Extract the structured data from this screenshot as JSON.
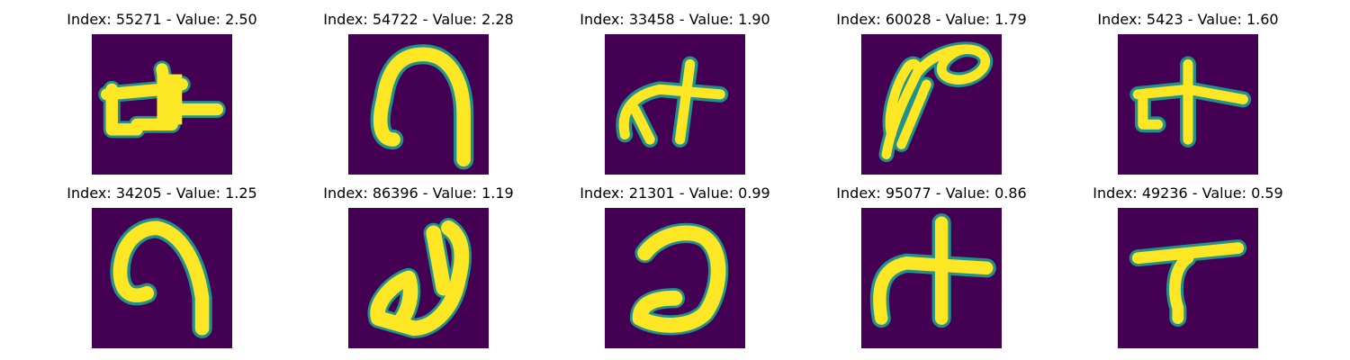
{
  "colors": {
    "background": "#440154",
    "foreground": "#fde725",
    "edge": "#21918c"
  },
  "panels": [
    {
      "title": "Index: 55271 - Value: 2.50",
      "image": "handwritten-glyph-pi-with-cross"
    },
    {
      "title": "Index: 54722 - Value: 2.28",
      "image": "handwritten-glyph-arch"
    },
    {
      "title": "Index: 33458 - Value: 1.90",
      "image": "handwritten-glyph-cross-with-hook"
    },
    {
      "title": "Index: 60028 - Value: 1.79",
      "image": "handwritten-glyph-loops"
    },
    {
      "title": "Index: 5423 - Value: 1.60",
      "image": "handwritten-glyph-cross-with-hook"
    },
    {
      "title": "Index: 34205 - Value: 1.25",
      "image": "handwritten-glyph-arch"
    },
    {
      "title": "Index: 86396 - Value: 1.19",
      "image": "handwritten-glyph-hooked-stroke"
    },
    {
      "title": "Index: 21301 - Value: 0.99",
      "image": "handwritten-glyph-reversed-c"
    },
    {
      "title": "Index: 95077 - Value: 0.86",
      "image": "handwritten-glyph-cross-with-hook"
    },
    {
      "title": "Index: 49236 - Value: 0.59",
      "image": "handwritten-glyph-t-shape"
    }
  ]
}
